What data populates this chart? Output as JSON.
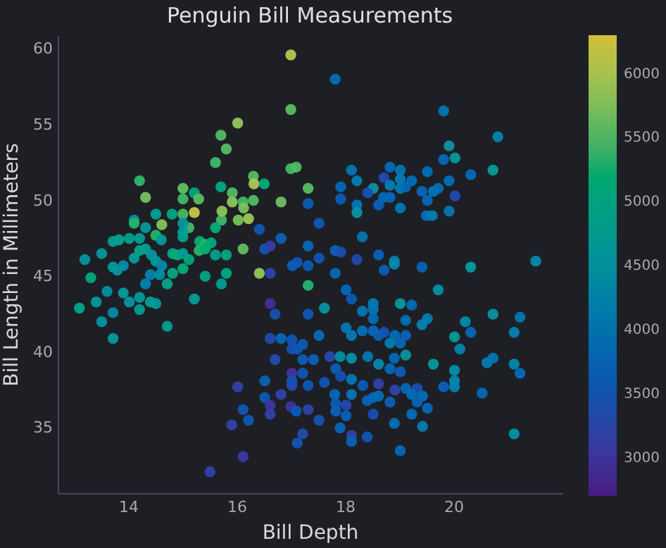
{
  "chart_data": {
    "type": "scatter",
    "title": "Penguin Bill Measurements",
    "xlabel": "Bill Depth",
    "ylabel": "Bill Length in Millimeters",
    "marker": "circle",
    "xlim": [
      12.7,
      22.0
    ],
    "ylim": [
      30.7,
      60.9
    ],
    "xticks": [
      14,
      16,
      18,
      20
    ],
    "yticks": [
      35,
      40,
      45,
      50,
      55,
      60
    ],
    "clim": [
      2700,
      6300
    ],
    "cticks": [
      3000,
      3500,
      4000,
      4500,
      5000,
      5500,
      6000
    ],
    "x": [
      17.0,
      17.0,
      16.02,
      15.71,
      15.81,
      15.61,
      17.0,
      17.1,
      14.21,
      14.32,
      15.01,
      15.22,
      15.3,
      15.71,
      15.92,
      16.31,
      16.32,
      16.51,
      17.32,
      16.82,
      15.22,
      15.01,
      15.01,
      15.92,
      16.12,
      16.31,
      16.13,
      16.22,
      16.03,
      15.72,
      15.61,
      15.73,
      14.62,
      14.51,
      14.11,
      14.11,
      14.81,
      15.12,
      15.01,
      14.51,
      14.32,
      13.72,
      13.83,
      14.02,
      14.21,
      13.51,
      13.2,
      13.31,
      13.61,
      13.1,
      13.41,
      13.51,
      13.72,
      13.72,
      13.91,
      14.02,
      14.21,
      14.21,
      14.41,
      14.51,
      14.72,
      15.22,
      14.72,
      14.32,
      13.8,
      13.72,
      13.91,
      14.11,
      14.21,
      14.32,
      14.43,
      14.51,
      14.62,
      14.41,
      14.58,
      14.61,
      14.82,
      14.91,
      15.01,
      15.12,
      15.32,
      15.42,
      15.53,
      15.31,
      15.42,
      15.61,
      15.81,
      15.42,
      14.82,
      15.01,
      15.81,
      15.72,
      15.01,
      15.01,
      16.42,
      16.12,
      16.52,
      16.62,
      16.42,
      17.32,
      16.82,
      17.32,
      17.52,
      17.32,
      17.52,
      17.03,
      17.12,
      17.32,
      16.62,
      16.62,
      16.71,
      17.32,
      17.62,
      16.62,
      16.82,
      16.71,
      16.02,
      16.52,
      16.52,
      16.12,
      16.22,
      15.91,
      16.12,
      15.51,
      16.62,
      16.62,
      16.82,
      17.02,
      17.02,
      17.12,
      17.22,
      17.0,
      17.1,
      17.32,
      17.52,
      17.02,
      17.02,
      17.12,
      17.22,
      17.22,
      17.42,
      17.22,
      17.02,
      17.32,
      17.52,
      17.72,
      17.82,
      19.82,
      20.82,
      19.92,
      19.82,
      20.03,
      20.73,
      18.12,
      18.22,
      18.83,
      19.02,
      19.02,
      19.02,
      18.72,
      18.52,
      17.92,
      17.92,
      18.42,
      18.83,
      19.23,
      19.12,
      18.71,
      18.83,
      18.62,
      19.02,
      18.22,
      18.22,
      19.52,
      19.42,
      19.63,
      19.72,
      19.52,
      19.92,
      20.03,
      20.32,
      19.5,
      19.61,
      19.92,
      18.32,
      17.82,
      17.92,
      18.22,
      18.62,
      18.72,
      18.91,
      18.91,
      19.42,
      17.82,
      20.32,
      21.52,
      19.72,
      18.02,
      18.12,
      18.52,
      18.52,
      18.52,
      19.02,
      19.23,
      18.32,
      19.12,
      19.52,
      19.42,
      20.22,
      20.73,
      21.23,
      21.12,
      20.32,
      20.02,
      20.12,
      18.02,
      18.12,
      18.32,
      18.52,
      18.62,
      18.72,
      18.92,
      19.12,
      19.02,
      18.83,
      17.91,
      18.12,
      18.42,
      18.91,
      19.12,
      18.62,
      18.83,
      19.02,
      19.63,
      20.02,
      20.02,
      20.02,
      19.82,
      20.62,
      20.73,
      21.12,
      21.23,
      20.53,
      17.83,
      17.62,
      17.92,
      18.12,
      18.12,
      18.33,
      18.62,
      18.92,
      19.12,
      19.33,
      19.23,
      19.43,
      19.33,
      17.81,
      17.83,
      17.83,
      18.02,
      18.02,
      18.41,
      18.52,
      18.62,
      18.52,
      18.83,
      19.52,
      19.23,
      17.91,
      18.12,
      18.12,
      18.41,
      18.91,
      19.43,
      19.02,
      21.12
    ],
    "values": [
      59.6,
      56.0,
      55.1,
      54.3,
      53.4,
      52.5,
      52.1,
      52.2,
      51.3,
      50.2,
      50.8,
      50.5,
      50.1,
      50.9,
      50.5,
      51.6,
      51.1,
      51.1,
      50.8,
      49.9,
      49.2,
      50.1,
      49.1,
      49.9,
      49.9,
      50.0,
      49.5,
      48.8,
      48.7,
      48.7,
      48.2,
      49.3,
      48.4,
      49.1,
      48.7,
      48.5,
      49.1,
      48.2,
      47.6,
      47.7,
      48.2,
      47.3,
      47.4,
      47.5,
      47.5,
      46.5,
      46.1,
      44.9,
      44.0,
      42.9,
      43.3,
      42.0,
      40.9,
      42.6,
      43.9,
      43.3,
      43.6,
      42.8,
      43.3,
      43.2,
      41.7,
      43.5,
      44.5,
      44.5,
      45.4,
      45.6,
      45.7,
      46.2,
      46.7,
      46.8,
      46.4,
      46.0,
      45.7,
      45.1,
      45.1,
      47.4,
      46.5,
      46.4,
      46.5,
      46.1,
      47.3,
      47.1,
      47.2,
      46.7,
      46.8,
      46.4,
      46.4,
      45.0,
      45.2,
      45.5,
      45.2,
      44.5,
      48.5,
      47.9,
      45.2,
      46.8,
      46.8,
      47.0,
      48.1,
      44.4,
      47.5,
      49.8,
      48.5,
      47.0,
      46.2,
      45.7,
      45.9,
      45.7,
      45.2,
      43.2,
      42.5,
      42.5,
      42.9,
      40.9,
      40.9,
      39.5,
      37.7,
      38.1,
      37.0,
      36.2,
      35.5,
      35.2,
      33.1,
      32.1,
      36.5,
      35.9,
      37.2,
      38.6,
      37.8,
      34.0,
      34.6,
      36.4,
      36.1,
      36.2,
      35.5,
      40.8,
      40.2,
      40.2,
      40.5,
      39.5,
      39.5,
      38.6,
      38.1,
      37.8,
      41.1,
      39.7,
      58.0,
      55.9,
      54.2,
      53.6,
      52.7,
      52.8,
      52.0,
      52.0,
      51.3,
      52.2,
      52.0,
      51.4,
      50.8,
      51.5,
      50.8,
      50.9,
      50.1,
      50.5,
      51.0,
      51.3,
      50.9,
      50.2,
      50.2,
      49.7,
      49.5,
      49.7,
      49.2,
      51.9,
      50.6,
      50.6,
      50.8,
      50.0,
      51.3,
      50.3,
      51.7,
      49.0,
      49.0,
      49.3,
      47.6,
      46.7,
      46.6,
      46.1,
      46.4,
      45.4,
      46.0,
      45.8,
      45.6,
      45.2,
      45.6,
      46.0,
      44.1,
      44.1,
      43.5,
      43.2,
      42.8,
      42.2,
      43.2,
      43.1,
      42.7,
      42.1,
      42.2,
      41.8,
      42.0,
      42.5,
      42.3,
      41.3,
      41.3,
      41.0,
      40.2,
      41.6,
      41.1,
      41.4,
      41.4,
      41.1,
      41.3,
      41.1,
      41.1,
      40.6,
      40.6,
      39.7,
      39.6,
      39.7,
      39.6,
      39.8,
      39.2,
      38.9,
      38.7,
      39.2,
      38.8,
      38.1,
      37.7,
      37.7,
      39.3,
      39.6,
      39.2,
      38.6,
      37.3,
      38.9,
      38.0,
      38.4,
      38.2,
      37.2,
      37.8,
      37.9,
      37.5,
      37.6,
      37.6,
      37.2,
      37.1,
      36.7,
      37.2,
      36.6,
      36.1,
      36.5,
      35.8,
      36.8,
      37.0,
      37.1,
      35.9,
      36.7,
      36.3,
      35.9,
      35.0,
      34.5,
      34.1,
      34.4,
      35.3,
      35.1,
      33.5,
      34.6
    ],
    "cvalues": [
      6050,
      5550,
      5850,
      5500,
      5550,
      5400,
      5400,
      5500,
      5350,
      5700,
      5600,
      5000,
      5550,
      5000,
      5500,
      5500,
      6000,
      5100,
      5550,
      5650,
      6150,
      5400,
      5450,
      5800,
      5400,
      5500,
      5700,
      5900,
      5700,
      5400,
      5100,
      5800,
      5750,
      4750,
      4400,
      5300,
      5000,
      5400,
      4900,
      5300,
      4600,
      4700,
      4900,
      4800,
      4700,
      4600,
      4500,
      5000,
      4400,
      4900,
      4600,
      4450,
      4600,
      4300,
      4650,
      4500,
      4600,
      4700,
      4700,
      4600,
      4750,
      4700,
      4900,
      4200,
      4500,
      4600,
      4400,
      4650,
      4900,
      4800,
      4500,
      4600,
      4300,
      4200,
      4400,
      4700,
      5000,
      5200,
      4700,
      5000,
      5200,
      5300,
      5100,
      5300,
      5200,
      4800,
      5000,
      5000,
      4900,
      5100,
      5000,
      4700,
      4600,
      4700,
      5850,
      5600,
      3550,
      3100,
      3500,
      5300,
      3700,
      3650,
      3600,
      3800,
      3500,
      3700,
      3550,
      3600,
      3250,
      2900,
      3400,
      3550,
      4500,
      3300,
      3800,
      3350,
      3200,
      3700,
      3600,
      3500,
      3600,
      3150,
      3050,
      3150,
      3000,
      3150,
      3200,
      3000,
      3300,
      3500,
      3300,
      3000,
      3600,
      3200,
      3500,
      3550,
      3400,
      3500,
      3600,
      3650,
      3700,
      3500,
      3450,
      3600,
      3900,
      3300,
      3900,
      4000,
      4200,
      4500,
      3800,
      4600,
      4700,
      4000,
      4100,
      3800,
      4000,
      4100,
      4100,
      3300,
      4500,
      3800,
      3600,
      3450,
      4100,
      3900,
      3800,
      3800,
      3800,
      3700,
      4000,
      4000,
      4500,
      3900,
      3800,
      4000,
      3900,
      3800,
      3900,
      3350,
      3800,
      3900,
      4100,
      4000,
      4000,
      3700,
      3400,
      3300,
      3700,
      3650,
      4200,
      4300,
      3700,
      3800,
      4650,
      4300,
      4400,
      3800,
      3600,
      4100,
      4000,
      3850,
      4600,
      3850,
      4000,
      3900,
      4100,
      4200,
      4300,
      4500,
      4000,
      4200,
      3800,
      4600,
      4200,
      4000,
      4100,
      3900,
      3800,
      3700,
      3500,
      3800,
      3700,
      3800,
      4100,
      4400,
      4400,
      4000,
      3800,
      4500,
      4300,
      3800,
      3650,
      4600,
      4400,
      4300,
      4200,
      3700,
      4100,
      4000,
      4300,
      3900,
      3800,
      3650,
      3500,
      3400,
      4000,
      4000,
      3600,
      3150,
      3200,
      3800,
      3400,
      3900,
      3900,
      3750,
      3800,
      3600,
      3700,
      3300,
      3700,
      3700,
      3800,
      3900,
      3400,
      3700,
      3800,
      3900,
      3800,
      3200,
      3700,
      3500,
      3900,
      4100,
      3800,
      4400
    ]
  }
}
